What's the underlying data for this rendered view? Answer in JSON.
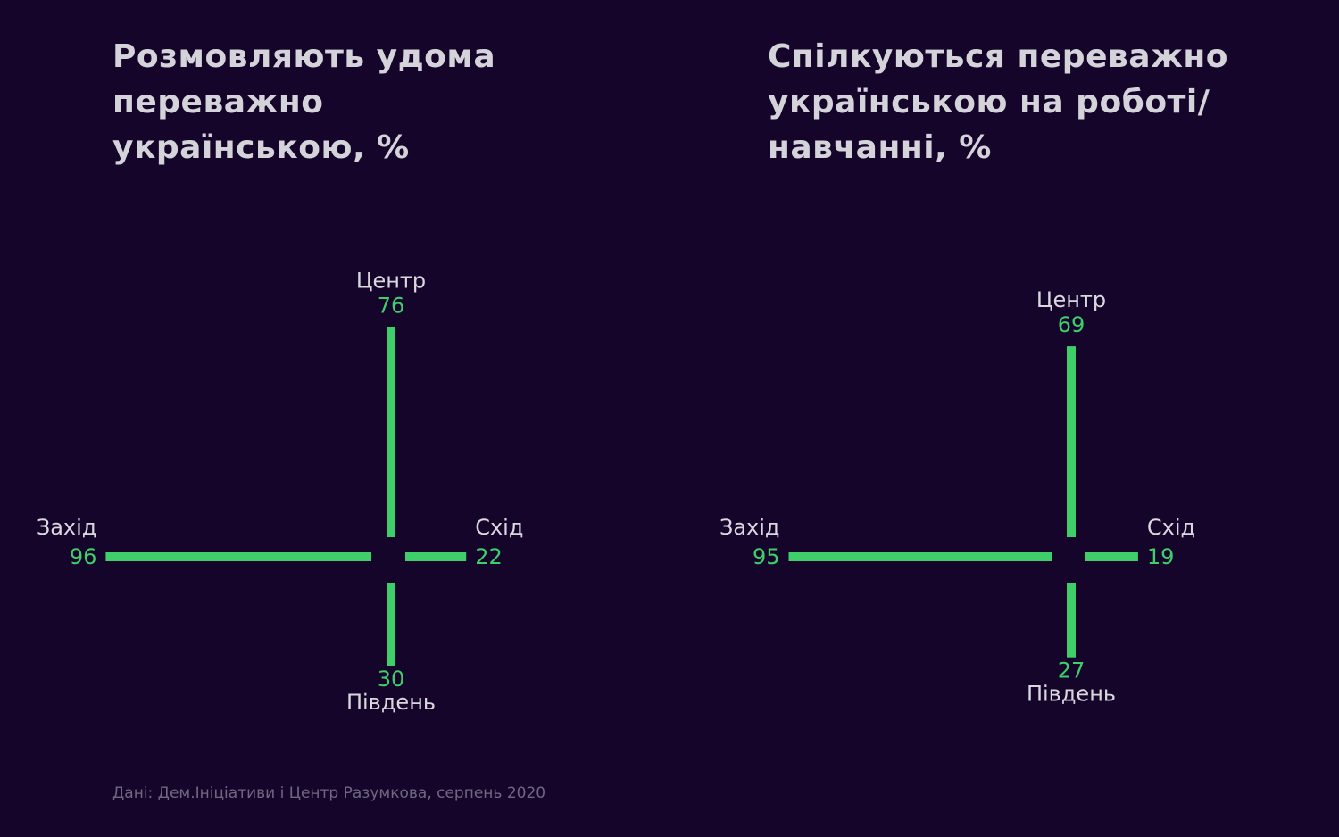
{
  "colors": {
    "background": "#16052b",
    "bar": "#3ecf6a",
    "value_text": "#3ecf6a",
    "label_text": "#d9d8df",
    "title_text": "#d4d3da",
    "source_text": "#6e6880"
  },
  "source": "Дані: Дем.Ініціативи і Центр Разумкова, серпень 2020",
  "chart_data": [
    {
      "type": "bar",
      "layout": "cross",
      "title": "Розмовляють удома переважно українською, %",
      "categories": [
        "Центр",
        "Захід",
        "Схід",
        "Південь"
      ],
      "directions": [
        "up",
        "left",
        "right",
        "down"
      ],
      "values": [
        76,
        96,
        22,
        30
      ],
      "unit": "%"
    },
    {
      "type": "bar",
      "layout": "cross",
      "title": "Спілкуються переважно українською на роботі/навчанні, %",
      "categories": [
        "Центр",
        "Захід",
        "Схід",
        "Південь"
      ],
      "directions": [
        "up",
        "left",
        "right",
        "down"
      ],
      "values": [
        69,
        95,
        19,
        27
      ],
      "unit": "%"
    }
  ]
}
